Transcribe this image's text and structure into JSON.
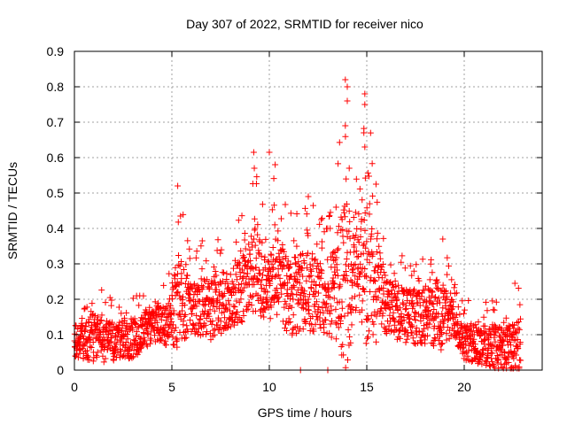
{
  "chart_data": {
    "type": "scatter",
    "title": "Day 307 of 2022, SRMTID for receiver nico",
    "xlabel": "GPS time / hours",
    "ylabel": "SRMTID / TECUs",
    "xlim": [
      0,
      24
    ],
    "ylim": [
      0,
      0.9
    ],
    "xticks": [
      0,
      5,
      10,
      15,
      20
    ],
    "yticks": [
      0,
      0.1,
      0.2,
      0.3,
      0.4,
      0.5,
      0.6,
      0.7,
      0.8,
      0.9
    ],
    "xtick_labels": [
      "0",
      "5",
      "10",
      "15",
      "20"
    ],
    "ytick_labels": [
      "0",
      "0.1",
      "0.2",
      "0.3",
      "0.4",
      "0.5",
      "0.6",
      "0.7",
      "0.8",
      "0.9"
    ],
    "grid": true,
    "marker": "+",
    "color": "#ff0000",
    "x_range_of_data": [
      0,
      22.9
    ],
    "envelope": {
      "hours": [
        0,
        1,
        2,
        3,
        4,
        5,
        5.3,
        6,
        7,
        8,
        9,
        9.2,
        10,
        10.3,
        11,
        12,
        13,
        14,
        14.5,
        15,
        16,
        17,
        18,
        18.8,
        19.5,
        20,
        21,
        22,
        22.9
      ],
      "median": [
        0.08,
        0.09,
        0.08,
        0.09,
        0.13,
        0.14,
        0.2,
        0.17,
        0.18,
        0.2,
        0.25,
        0.3,
        0.22,
        0.3,
        0.2,
        0.22,
        0.2,
        0.25,
        0.3,
        0.28,
        0.18,
        0.15,
        0.15,
        0.15,
        0.15,
        0.08,
        0.07,
        0.06,
        0.06
      ],
      "upper": [
        0.18,
        0.25,
        0.2,
        0.22,
        0.25,
        0.3,
        0.52,
        0.33,
        0.4,
        0.38,
        0.5,
        0.62,
        0.4,
        0.61,
        0.45,
        0.48,
        0.42,
        0.82,
        0.55,
        0.78,
        0.35,
        0.33,
        0.32,
        0.36,
        0.28,
        0.2,
        0.2,
        0.2,
        0.25
      ]
    },
    "notable_points": [
      {
        "x": 13.9,
        "y": 0.82
      },
      {
        "x": 14.0,
        "y": 0.8
      },
      {
        "x": 14.9,
        "y": 0.78
      },
      {
        "x": 14.9,
        "y": 0.75
      },
      {
        "x": 14.0,
        "y": 0.76
      },
      {
        "x": 13.9,
        "y": 0.69
      },
      {
        "x": 14.85,
        "y": 0.67
      },
      {
        "x": 14.9,
        "y": 0.63
      },
      {
        "x": 9.2,
        "y": 0.615
      },
      {
        "x": 10.0,
        "y": 0.615
      },
      {
        "x": 10.3,
        "y": 0.58
      },
      {
        "x": 14.1,
        "y": 0.57
      },
      {
        "x": 5.3,
        "y": 0.52
      },
      {
        "x": 12.0,
        "y": 0.49
      },
      {
        "x": 11.6,
        "y": 0.0
      },
      {
        "x": 13.0,
        "y": 0.0
      },
      {
        "x": 22.6,
        "y": 0.245
      },
      {
        "x": 18.9,
        "y": 0.37
      }
    ]
  }
}
